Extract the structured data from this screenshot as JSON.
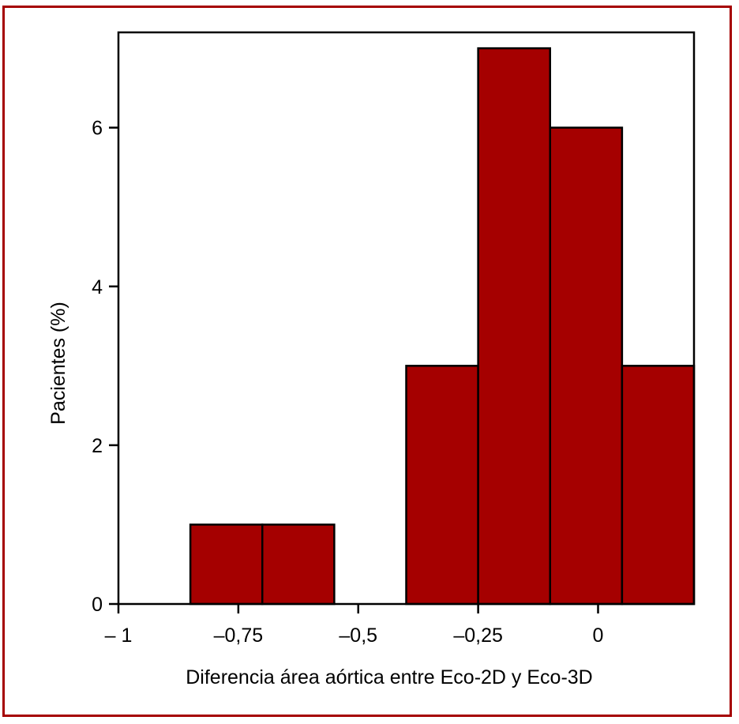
{
  "chart_data": {
    "type": "histogram",
    "xlabel": "Diferencia área aórtica entre Eco-2D y Eco-3D",
    "ylabel": "Pacientes (%)",
    "xlim": [
      -1.0,
      0.2
    ],
    "ylim": [
      0,
      7.2
    ],
    "x_ticks": [
      -1,
      -0.75,
      -0.5,
      -0.25,
      0
    ],
    "x_tick_labels": [
      "– 1",
      "–0,75",
      "–0,5",
      "–0,25",
      "0"
    ],
    "y_ticks": [
      0,
      2,
      4,
      6
    ],
    "y_tick_labels": [
      "0",
      "2",
      "4",
      "6"
    ],
    "bins": [
      {
        "x0": -0.85,
        "x1": -0.7,
        "value": 1
      },
      {
        "x0": -0.7,
        "x1": -0.55,
        "value": 1
      },
      {
        "x0": -0.4,
        "x1": -0.25,
        "value": 3
      },
      {
        "x0": -0.25,
        "x1": -0.1,
        "value": 7
      },
      {
        "x0": -0.1,
        "x1": 0.05,
        "value": 6
      },
      {
        "x0": 0.05,
        "x1": 0.2,
        "value": 3
      }
    ],
    "bar_color": "#a50000",
    "frame_color": "#a50000",
    "grid": false
  }
}
